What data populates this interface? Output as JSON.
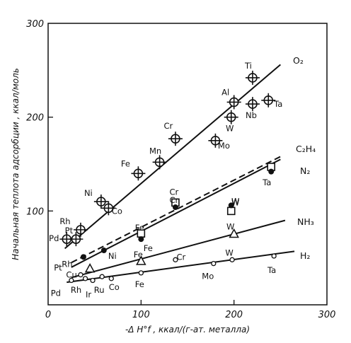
{
  "chart_data": {
    "type": "scatter",
    "xlabel": "-Δ H°f , ккал/(г-ат. металла)",
    "ylabel": "Начальная теплота адсорбции , ккал/моль",
    "xlim": [
      0,
      300
    ],
    "ylim": [
      0,
      300
    ],
    "x_ticks": [
      "0",
      "100",
      "200",
      "300"
    ],
    "y_ticks": [
      "100",
      "200",
      "300"
    ],
    "x_tick_values": [
      0,
      100,
      200,
      300
    ],
    "y_tick_values": [
      100,
      200,
      300
    ],
    "grid": false,
    "series": [
      {
        "name": "O₂",
        "marker": "circle-cross",
        "line": {
          "x": [
            18,
            250
          ],
          "y": [
            60,
            256
          ],
          "style": "solid"
        },
        "points": [
          {
            "label": "Pd",
            "x": 20,
            "y": 70
          },
          {
            "label": "Pt",
            "x": 30,
            "y": 70
          },
          {
            "label": "Rh",
            "x": 35,
            "y": 80
          },
          {
            "label": "Ni",
            "x": 57,
            "y": 110
          },
          {
            "label": "Co",
            "x": 65,
            "y": 103
          },
          {
            "label": "Fe",
            "x": 97,
            "y": 140
          },
          {
            "label": "Mn",
            "x": 120,
            "y": 152
          },
          {
            "label": "Cr",
            "x": 137,
            "y": 177
          },
          {
            "label": "Mo",
            "x": 180,
            "y": 175
          },
          {
            "label": "W",
            "x": 197,
            "y": 200
          },
          {
            "label": "Nb",
            "x": 220,
            "y": 214
          },
          {
            "label": "Al",
            "x": 200,
            "y": 216
          },
          {
            "label": "Ti",
            "x": 220,
            "y": 242
          },
          {
            "label": "Ta",
            "x": 237,
            "y": 218
          }
        ]
      },
      {
        "name": "C₂H₄",
        "marker": "square",
        "line": {
          "x": [
            25,
            250
          ],
          "y": [
            45,
            158
          ],
          "style": "dashed"
        },
        "points": [
          {
            "label": "Fe",
            "x": 100,
            "y": 76
          },
          {
            "label": "Cr",
            "x": 137,
            "y": 109
          },
          {
            "label": "W",
            "x": 197,
            "y": 100
          },
          {
            "label": "Ta",
            "x": 240,
            "y": 147
          }
        ]
      },
      {
        "name": "N₂",
        "marker": "filled-circle",
        "line": {
          "x": [
            25,
            250
          ],
          "y": [
            40,
            155
          ],
          "style": "solid"
        },
        "points": [
          {
            "label": "Rh",
            "x": 38,
            "y": 51
          },
          {
            "label": "Ni",
            "x": 60,
            "y": 58
          },
          {
            "label": "Fe",
            "x": 100,
            "y": 70
          },
          {
            "label": "Cr",
            "x": 137,
            "y": 104
          },
          {
            "label": "W",
            "x": 197,
            "y": 106
          },
          {
            "label": "Ta",
            "x": 240,
            "y": 142
          }
        ]
      },
      {
        "name": "NH₃",
        "marker": "triangle",
        "line": {
          "x": [
            25,
            255
          ],
          "y": [
            29,
            90
          ],
          "style": "solid"
        },
        "points": [
          {
            "label": "Cu",
            "x": 45,
            "y": 38
          },
          {
            "label": "Fe",
            "x": 100,
            "y": 46
          },
          {
            "label": "W",
            "x": 200,
            "y": 75
          }
        ]
      },
      {
        "name": "H₂",
        "marker": "small-circle",
        "line": {
          "x": [
            20,
            265
          ],
          "y": [
            24,
            57
          ],
          "style": "solid"
        },
        "points": [
          {
            "label": "Pd",
            "x": 25,
            "y": 26
          },
          {
            "label": "Pt",
            "x": 35,
            "y": 32
          },
          {
            "label": "Rh",
            "x": 40,
            "y": 28
          },
          {
            "label": "Ir",
            "x": 48,
            "y": 26
          },
          {
            "label": "Ru",
            "x": 58,
            "y": 30
          },
          {
            "label": "Co",
            "x": 68,
            "y": 28
          },
          {
            "label": "Fe",
            "x": 100,
            "y": 34
          },
          {
            "label": "Cr",
            "x": 137,
            "y": 48
          },
          {
            "label": "Mo",
            "x": 178,
            "y": 44
          },
          {
            "label": "W",
            "x": 198,
            "y": 48
          },
          {
            "label": "Ta",
            "x": 243,
            "y": 52
          }
        ]
      }
    ]
  }
}
